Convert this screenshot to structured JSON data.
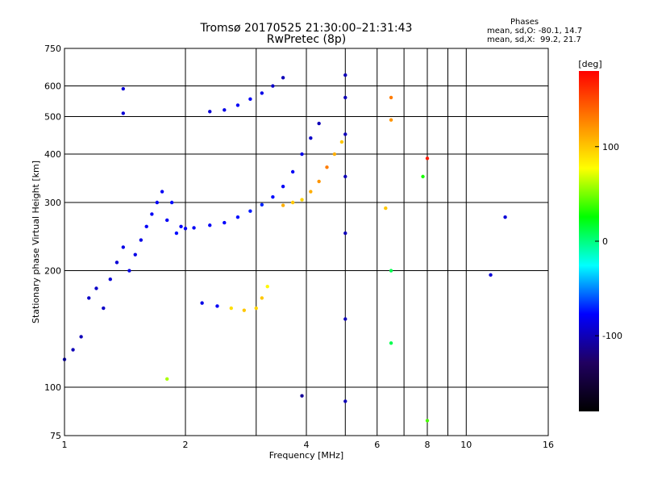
{
  "header": {
    "title_line1": "Tromsø 20170525 21:30:00–21:31:43",
    "title_line2": "RwPretec (8p)"
  },
  "phase_info": {
    "heading": "Phases",
    "line_o": "mean, sd,O: -80.1, 14.7",
    "line_x": "mean, sd,X:  99.2, 21.7"
  },
  "colorbar": {
    "unit": "[deg]",
    "range": [
      -180,
      180
    ],
    "ticks": [
      "100",
      "0",
      "-100"
    ],
    "tick_values": [
      100,
      0,
      -100
    ],
    "colors": [
      "#ff0000",
      "#ff8000",
      "#ffff00",
      "#00ff00",
      "#00ffff",
      "#0000ff",
      "#200060",
      "#000000"
    ]
  },
  "chart_data": {
    "type": "scatter",
    "title": "Tromsø 20170525 21:30:00–21:31:43",
    "subtitle": "RwPretec (8p)",
    "xlabel": "Frequency [MHz]",
    "ylabel": "Stationary phase Virtual Height [km]",
    "x_scale": "log",
    "y_scale": "log",
    "xlim": [
      1,
      16
    ],
    "ylim": [
      75,
      750
    ],
    "x_ticks": [
      1,
      2,
      4,
      6,
      8,
      10,
      16
    ],
    "x_tick_labels": [
      "1",
      "2",
      "4",
      "6",
      "8",
      "10",
      "16"
    ],
    "x_grid_extra": [
      3,
      5,
      7,
      9
    ],
    "y_ticks": [
      75,
      100,
      200,
      300,
      400,
      500,
      600,
      750
    ],
    "y_tick_labels": [
      "75",
      "100",
      "200",
      "300",
      "400",
      "500",
      "600",
      "750"
    ],
    "grid": true,
    "color_quantity": "phase [deg]",
    "series": [
      {
        "trace": "ordinary-low-layer",
        "points": [
          [
            1.0,
            118,
            -95
          ],
          [
            1.05,
            125,
            -100
          ],
          [
            1.1,
            135,
            -100
          ],
          [
            1.15,
            170,
            -95
          ],
          [
            1.2,
            180,
            -95
          ],
          [
            1.25,
            160,
            -95
          ],
          [
            1.3,
            190,
            -90
          ],
          [
            1.35,
            210,
            -90
          ],
          [
            1.4,
            230,
            -85
          ],
          [
            1.45,
            200,
            -85
          ],
          [
            1.5,
            220,
            -85
          ],
          [
            1.55,
            240,
            -85
          ],
          [
            1.6,
            260,
            -80
          ],
          [
            1.65,
            280,
            -80
          ],
          [
            1.7,
            300,
            -80
          ],
          [
            1.75,
            320,
            -80
          ],
          [
            1.8,
            270,
            -80
          ],
          [
            1.85,
            300,
            -75
          ],
          [
            1.9,
            250,
            -75
          ],
          [
            1.95,
            260,
            -80
          ],
          [
            2.0,
            257,
            -80
          ]
        ]
      },
      {
        "trace": "ordinary-f-layer",
        "points": [
          [
            2.1,
            258,
            -80
          ],
          [
            2.3,
            262,
            -80
          ],
          [
            2.5,
            266,
            -78
          ],
          [
            2.7,
            275,
            -75
          ],
          [
            2.9,
            285,
            -72
          ],
          [
            3.1,
            296,
            -70
          ],
          [
            3.3,
            310,
            -75
          ],
          [
            3.5,
            330,
            -80
          ],
          [
            3.7,
            360,
            -80
          ],
          [
            3.9,
            400,
            -85
          ],
          [
            4.1,
            440,
            -95
          ],
          [
            4.3,
            480,
            -100
          ]
        ]
      },
      {
        "trace": "ordinary-upper-branch",
        "points": [
          [
            2.3,
            515,
            -90
          ],
          [
            2.5,
            520,
            -85
          ],
          [
            2.7,
            535,
            -80
          ],
          [
            2.9,
            555,
            -80
          ],
          [
            3.1,
            575,
            -85
          ],
          [
            3.3,
            600,
            -95
          ],
          [
            3.5,
            630,
            -100
          ]
        ]
      },
      {
        "trace": "extraordinary-trace",
        "points": [
          [
            3.5,
            295,
            110
          ],
          [
            3.7,
            300,
            100
          ],
          [
            3.9,
            305,
            95
          ],
          [
            4.1,
            320,
            110
          ],
          [
            4.3,
            340,
            120
          ],
          [
            4.5,
            370,
            130
          ],
          [
            4.7,
            400,
            110
          ],
          [
            4.9,
            430,
            100
          ]
        ]
      },
      {
        "trace": "e-region-echoes",
        "points": [
          [
            2.2,
            165,
            -85
          ],
          [
            2.4,
            162,
            -80
          ],
          [
            2.6,
            160,
            90
          ],
          [
            2.8,
            158,
            100
          ],
          [
            3.0,
            160,
            95
          ],
          [
            3.1,
            170,
            100
          ],
          [
            3.2,
            182,
            80
          ]
        ]
      },
      {
        "trace": "5mhz-vertical-interference",
        "points": [
          [
            5.0,
            92,
            -100
          ],
          [
            5.0,
            150,
            -100
          ],
          [
            5.0,
            250,
            -100
          ],
          [
            5.0,
            350,
            -100
          ],
          [
            5.0,
            450,
            -100
          ],
          [
            5.0,
            560,
            -100
          ],
          [
            5.0,
            640,
            -100
          ]
        ]
      },
      {
        "trace": "scattered-points",
        "points": [
          [
            6.5,
            490,
            120
          ],
          [
            6.5,
            560,
            130
          ],
          [
            6.5,
            200,
            10
          ],
          [
            6.5,
            130,
            10
          ],
          [
            6.3,
            290,
            100
          ],
          [
            8.0,
            390,
            170
          ],
          [
            8.0,
            82,
            40
          ],
          [
            7.8,
            350,
            30
          ],
          [
            12.5,
            275,
            -90
          ],
          [
            11.5,
            195,
            -90
          ],
          [
            3.9,
            95,
            -110
          ],
          [
            1.8,
            105,
            60
          ],
          [
            1.4,
            510,
            -90
          ],
          [
            1.4,
            590,
            -90
          ]
        ]
      }
    ]
  }
}
